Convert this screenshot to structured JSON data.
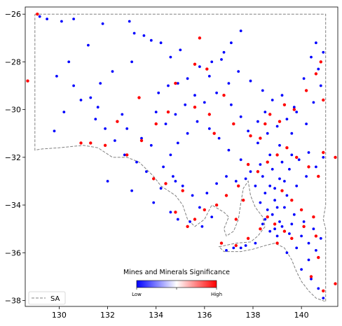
{
  "chart_data": {
    "type": "scatter",
    "title": "",
    "xlabel": "",
    "ylabel": "",
    "xlim": [
      128.6,
      141.5
    ],
    "ylim": [
      -38.25,
      -25.7
    ],
    "xticks": [
      130,
      132,
      134,
      136,
      138,
      140
    ],
    "yticks": [
      -26,
      -28,
      -30,
      -32,
      -34,
      -36,
      -38
    ],
    "grid": false,
    "colorbar": {
      "title": "Mines and Minerals Significance",
      "low_label": "Low",
      "high_label": "High",
      "colors": [
        "#0000ff",
        "#ffffff",
        "#ff0000"
      ]
    },
    "legend": {
      "position": "lower-left",
      "entries": [
        {
          "label": "SA",
          "style": "dashed",
          "color": "#808080"
        }
      ]
    },
    "boundary": {
      "name": "SA",
      "color": "#808080",
      "coords": [
        [
          129.0,
          -26.0
        ],
        [
          141.0,
          -26.0
        ],
        [
          141.0,
          -34.0
        ],
        [
          140.9,
          -34.6
        ],
        [
          141.0,
          -35.0
        ],
        [
          141.0,
          -38.05
        ],
        [
          140.6,
          -37.9
        ],
        [
          140.3,
          -37.6
        ],
        [
          140.0,
          -37.2
        ],
        [
          139.8,
          -36.8
        ],
        [
          139.6,
          -36.3
        ],
        [
          139.3,
          -35.8
        ],
        [
          138.9,
          -35.6
        ],
        [
          138.5,
          -35.7
        ],
        [
          138.0,
          -35.85
        ],
        [
          137.5,
          -35.95
        ],
        [
          136.8,
          -35.95
        ],
        [
          136.6,
          -35.75
        ],
        [
          137.3,
          -35.6
        ],
        [
          137.9,
          -35.55
        ],
        [
          138.2,
          -35.3
        ],
        [
          138.5,
          -34.9
        ],
        [
          138.4,
          -34.5
        ],
        [
          138.1,
          -34.1
        ],
        [
          137.9,
          -33.6
        ],
        [
          137.8,
          -33.0
        ],
        [
          137.6,
          -33.3
        ],
        [
          137.5,
          -33.9
        ],
        [
          137.4,
          -34.6
        ],
        [
          137.2,
          -35.1
        ],
        [
          136.9,
          -35.3
        ],
        [
          136.8,
          -35.0
        ],
        [
          137.0,
          -34.5
        ],
        [
          136.8,
          -34.3
        ],
        [
          136.3,
          -34.0
        ],
        [
          136.0,
          -34.6
        ],
        [
          135.6,
          -34.9
        ],
        [
          135.3,
          -34.6
        ],
        [
          135.1,
          -34.0
        ],
        [
          134.8,
          -33.6
        ],
        [
          134.2,
          -33.2
        ],
        [
          133.9,
          -32.8
        ],
        [
          133.6,
          -32.5
        ],
        [
          133.3,
          -32.2
        ],
        [
          132.8,
          -32.0
        ],
        [
          132.2,
          -32.0
        ],
        [
          131.6,
          -31.6
        ],
        [
          131.0,
          -31.5
        ],
        [
          130.0,
          -31.6
        ],
        [
          129.3,
          -31.65
        ],
        [
          129.0,
          -31.7
        ],
        [
          129.0,
          -26.0
        ]
      ]
    },
    "series": [
      {
        "color": "#0000ff",
        "points": [
          [
            129.2,
            -26.1
          ],
          [
            129.5,
            -26.2
          ],
          [
            130.1,
            -26.3
          ],
          [
            130.6,
            -26.2
          ],
          [
            131.8,
            -26.4
          ],
          [
            132.9,
            -26.3
          ],
          [
            133.1,
            -26.8
          ],
          [
            133.5,
            -26.9
          ],
          [
            133.8,
            -27.1
          ],
          [
            134.2,
            -27.2
          ],
          [
            131.2,
            -27.3
          ],
          [
            130.4,
            -28.0
          ],
          [
            129.9,
            -28.6
          ],
          [
            130.6,
            -29.0
          ],
          [
            131.3,
            -29.5
          ],
          [
            131.5,
            -30.4
          ],
          [
            132.6,
            -30.2
          ],
          [
            132.8,
            -30.8
          ],
          [
            133.4,
            -31.2
          ],
          [
            133.8,
            -31.5
          ],
          [
            134.1,
            -29.3
          ],
          [
            134.5,
            -29.0
          ],
          [
            134.9,
            -28.9
          ],
          [
            135.3,
            -28.7
          ],
          [
            135.8,
            -28.2
          ],
          [
            136.2,
            -28.6
          ],
          [
            136.3,
            -28.0
          ],
          [
            136.8,
            -27.6
          ],
          [
            137.5,
            -26.7
          ],
          [
            137.1,
            -27.2
          ],
          [
            136.5,
            -29.3
          ],
          [
            137.1,
            -29.8
          ],
          [
            137.5,
            -30.3
          ],
          [
            137.8,
            -30.9
          ],
          [
            138.2,
            -30.5
          ],
          [
            138.5,
            -30.1
          ],
          [
            138.8,
            -29.6
          ],
          [
            138.4,
            -29.2
          ],
          [
            139.2,
            -29.4
          ],
          [
            139.7,
            -29.9
          ],
          [
            140.1,
            -28.7
          ],
          [
            140.4,
            -27.8
          ],
          [
            140.6,
            -27.2
          ],
          [
            140.9,
            -27.6
          ],
          [
            140.2,
            -30.6
          ],
          [
            139.6,
            -31.0
          ],
          [
            139.1,
            -31.5
          ],
          [
            138.7,
            -31.9
          ],
          [
            138.3,
            -32.3
          ],
          [
            137.9,
            -32.6
          ],
          [
            137.5,
            -32.1
          ],
          [
            137.0,
            -31.7
          ],
          [
            136.6,
            -31.2
          ],
          [
            136.2,
            -30.8
          ],
          [
            135.7,
            -30.5
          ],
          [
            135.3,
            -31.0
          ],
          [
            134.9,
            -31.4
          ],
          [
            134.6,
            -31.9
          ],
          [
            134.3,
            -32.4
          ],
          [
            134.7,
            -32.8
          ],
          [
            135.1,
            -33.2
          ],
          [
            135.5,
            -33.6
          ],
          [
            135.8,
            -34.1
          ],
          [
            136.1,
            -33.5
          ],
          [
            136.5,
            -33.1
          ],
          [
            136.9,
            -32.8
          ],
          [
            137.3,
            -33.0
          ],
          [
            137.7,
            -32.9
          ],
          [
            138.1,
            -33.2
          ],
          [
            138.5,
            -33.5
          ],
          [
            138.9,
            -33.8
          ],
          [
            139.3,
            -34.1
          ],
          [
            139.7,
            -34.4
          ],
          [
            140.1,
            -34.7
          ],
          [
            140.5,
            -35.0
          ],
          [
            140.8,
            -35.4
          ],
          [
            140.6,
            -35.9
          ],
          [
            140.3,
            -36.3
          ],
          [
            140.0,
            -36.7
          ],
          [
            140.4,
            -37.1
          ],
          [
            140.7,
            -37.5
          ],
          [
            140.9,
            -37.9
          ],
          [
            139.5,
            -35.2
          ],
          [
            139.0,
            -35.3
          ],
          [
            138.7,
            -35.1
          ],
          [
            138.4,
            -34.8
          ],
          [
            138.8,
            -34.4
          ],
          [
            139.1,
            -34.7
          ],
          [
            139.4,
            -33.6
          ],
          [
            139.8,
            -33.2
          ],
          [
            140.2,
            -32.8
          ],
          [
            140.6,
            -32.4
          ],
          [
            140.9,
            -32.0
          ],
          [
            140.3,
            -31.8
          ],
          [
            139.9,
            -32.1
          ],
          [
            139.5,
            -32.5
          ],
          [
            139.1,
            -32.9
          ],
          [
            138.7,
            -33.2
          ],
          [
            138.4,
            -32.8
          ],
          [
            138.8,
            -32.5
          ],
          [
            139.2,
            -32.2
          ],
          [
            139.6,
            -31.9
          ],
          [
            137.7,
            -35.7
          ],
          [
            137.2,
            -35.8
          ],
          [
            136.9,
            -35.9
          ],
          [
            137.5,
            -35.8
          ],
          [
            138.1,
            -35.6
          ],
          [
            134.6,
            -34.3
          ],
          [
            134.9,
            -34.6
          ],
          [
            135.4,
            -34.7
          ],
          [
            135.9,
            -34.9
          ],
          [
            136.3,
            -34.5
          ],
          [
            133.6,
            -32.6
          ],
          [
            133.2,
            -32.2
          ],
          [
            132.7,
            -31.9
          ],
          [
            132.3,
            -31.3
          ],
          [
            131.9,
            -30.8
          ],
          [
            131.6,
            -29.9
          ],
          [
            134.0,
            -30.1
          ],
          [
            134.4,
            -30.6
          ],
          [
            134.8,
            -30.2
          ],
          [
            135.2,
            -29.8
          ],
          [
            135.6,
            -29.4
          ],
          [
            136.0,
            -29.7
          ],
          [
            138.9,
            -35.0
          ],
          [
            139.2,
            -34.9
          ],
          [
            138.6,
            -34.2
          ],
          [
            138.3,
            -33.9
          ],
          [
            138.9,
            -33.3
          ],
          [
            139.3,
            -33.0
          ],
          [
            138.5,
            -34.6
          ],
          [
            139.0,
            -34.1
          ],
          [
            139.6,
            -34.8
          ],
          [
            140.0,
            -35.3
          ],
          [
            140.3,
            -35.6
          ],
          [
            139.8,
            -35.8
          ],
          [
            139.4,
            -36.0
          ],
          [
            138.2,
            -31.4
          ],
          [
            138.6,
            -31.0
          ],
          [
            139.0,
            -30.7
          ],
          [
            139.4,
            -30.4
          ],
          [
            139.8,
            -30.1
          ],
          [
            140.5,
            -29.7
          ],
          [
            140.8,
            -29.0
          ],
          [
            140.7,
            -28.3
          ],
          [
            137.9,
            -28.8
          ],
          [
            137.4,
            -28.4
          ],
          [
            137.0,
            -28.9
          ],
          [
            136.7,
            -27.9
          ],
          [
            135.0,
            -27.5
          ],
          [
            134.6,
            -27.8
          ],
          [
            133.0,
            -28.0
          ],
          [
            132.2,
            -28.4
          ],
          [
            131.7,
            -28.9
          ],
          [
            130.9,
            -29.6
          ],
          [
            130.2,
            -30.1
          ],
          [
            129.8,
            -30.9
          ],
          [
            132.0,
            -33.0
          ],
          [
            133.0,
            -33.4
          ],
          [
            133.9,
            -33.9
          ],
          [
            134.2,
            -33.3
          ],
          [
            134.8,
            -33.0
          ]
        ]
      },
      {
        "color": "#ff0000",
        "points": [
          [
            129.1,
            -26.0
          ],
          [
            128.7,
            -28.8
          ],
          [
            133.3,
            -29.5
          ],
          [
            134.8,
            -28.9
          ],
          [
            135.6,
            -28.1
          ],
          [
            136.1,
            -28.3
          ],
          [
            135.8,
            -27.0
          ],
          [
            140.8,
            -28.0
          ],
          [
            140.6,
            -28.5
          ],
          [
            140.9,
            -29.6
          ],
          [
            140.2,
            -29.2
          ],
          [
            139.7,
            -30.0
          ],
          [
            139.1,
            -30.5
          ],
          [
            138.5,
            -30.6
          ],
          [
            138.3,
            -31.2
          ],
          [
            137.9,
            -31.1
          ],
          [
            137.2,
            -30.6
          ],
          [
            136.8,
            -29.4
          ],
          [
            136.2,
            -30.2
          ],
          [
            135.6,
            -29.9
          ],
          [
            134.5,
            -30.1
          ],
          [
            134.0,
            -30.6
          ],
          [
            133.4,
            -31.3
          ],
          [
            132.4,
            -30.5
          ],
          [
            132.8,
            -31.9
          ],
          [
            131.9,
            -31.5
          ],
          [
            131.3,
            -31.4
          ],
          [
            130.9,
            -31.4
          ],
          [
            133.9,
            -32.9
          ],
          [
            134.4,
            -33.1
          ],
          [
            135.1,
            -33.4
          ],
          [
            135.6,
            -34.6
          ],
          [
            136.0,
            -34.2
          ],
          [
            136.5,
            -34.0
          ],
          [
            136.9,
            -33.6
          ],
          [
            137.4,
            -33.2
          ],
          [
            137.6,
            -33.8
          ],
          [
            137.3,
            -34.6
          ],
          [
            137.8,
            -35.4
          ],
          [
            138.3,
            -35.0
          ],
          [
            138.6,
            -34.5
          ],
          [
            138.9,
            -34.8
          ],
          [
            139.3,
            -35.1
          ],
          [
            139.0,
            -35.6
          ],
          [
            139.6,
            -35.4
          ],
          [
            140.1,
            -34.9
          ],
          [
            140.6,
            -35.3
          ],
          [
            140.7,
            -36.2
          ],
          [
            140.4,
            -37.0
          ],
          [
            140.9,
            -37.6
          ],
          [
            141.4,
            -37.3
          ],
          [
            140.7,
            -32.8
          ],
          [
            140.3,
            -32.4
          ],
          [
            139.8,
            -32.0
          ],
          [
            139.4,
            -31.6
          ],
          [
            139.0,
            -31.9
          ],
          [
            138.6,
            -32.2
          ],
          [
            138.2,
            -32.6
          ],
          [
            137.8,
            -32.3
          ],
          [
            139.2,
            -33.4
          ],
          [
            139.6,
            -33.8
          ],
          [
            140.0,
            -34.2
          ],
          [
            140.5,
            -34.5
          ],
          [
            136.7,
            -35.6
          ],
          [
            137.3,
            -35.7
          ],
          [
            134.8,
            -34.3
          ],
          [
            135.3,
            -34.9
          ],
          [
            141.4,
            -32.0
          ],
          [
            140.9,
            -31.8
          ],
          [
            139.3,
            -29.8
          ],
          [
            138.7,
            -30.2
          ],
          [
            136.4,
            -31.0
          ]
        ]
      }
    ]
  }
}
